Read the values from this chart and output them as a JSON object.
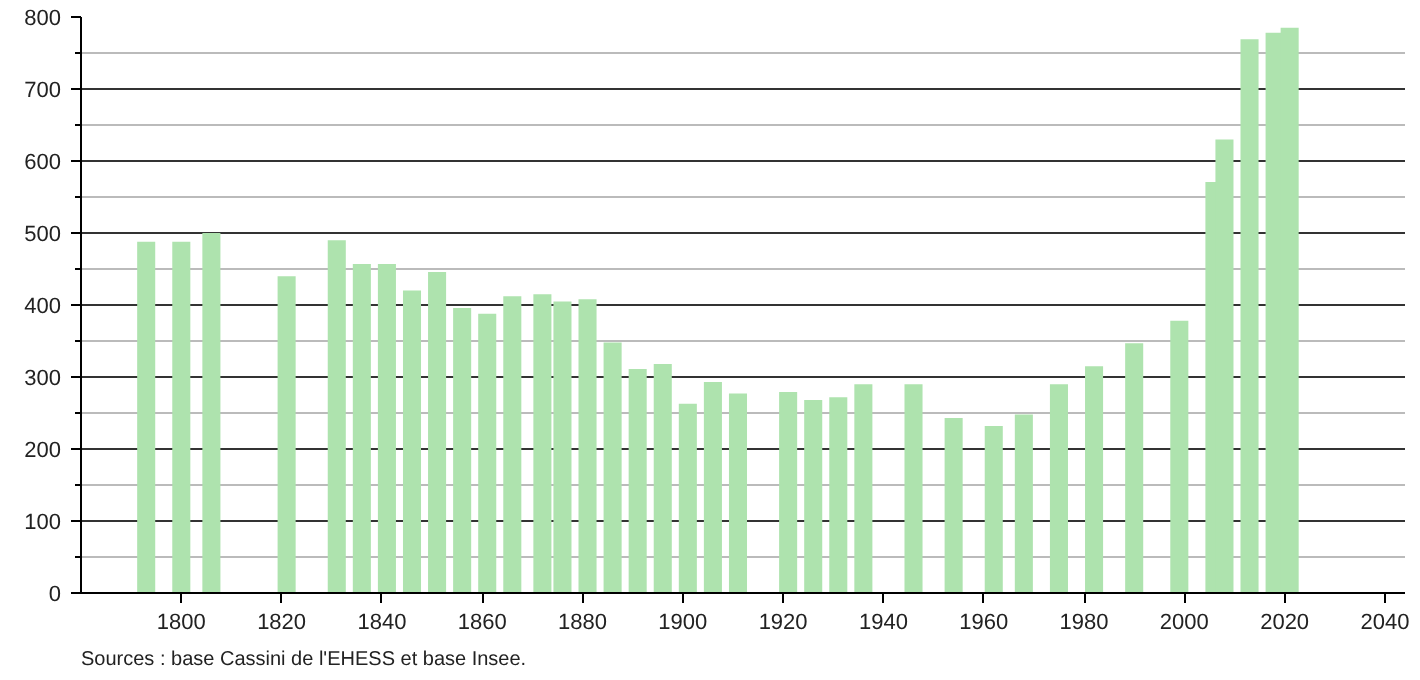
{
  "chart_data": {
    "type": "bar",
    "color": "#aee3ae",
    "x": [
      1793,
      1800,
      1806,
      1821,
      1831,
      1836,
      1841,
      1846,
      1851,
      1856,
      1861,
      1866,
      1872,
      1876,
      1881,
      1886,
      1891,
      1896,
      1901,
      1906,
      1911,
      1921,
      1926,
      1931,
      1936,
      1946,
      1954,
      1962,
      1968,
      1975,
      1982,
      1990,
      1999,
      2006,
      2008,
      2013,
      2018,
      2021
    ],
    "values": [
      488,
      488,
      500,
      440,
      490,
      457,
      457,
      420,
      446,
      396,
      388,
      412,
      415,
      405,
      408,
      348,
      311,
      318,
      263,
      293,
      277,
      279,
      268,
      272,
      290,
      290,
      243,
      232,
      248,
      290,
      315,
      347,
      378,
      571,
      630,
      769,
      778,
      785
    ],
    "xlim": [
      1780,
      2044
    ],
    "xticks": [
      1800,
      1820,
      1840,
      1860,
      1880,
      1900,
      1920,
      1940,
      1960,
      1980,
      2000,
      2020,
      2040
    ],
    "ylim": [
      0,
      800
    ],
    "yticks": [
      0,
      {
        "value": 50,
        "label": null
      },
      100,
      {
        "value": 150,
        "label": null
      },
      200,
      {
        "value": 250,
        "label": null
      },
      300,
      {
        "value": 350,
        "label": null
      },
      400,
      {
        "value": 450,
        "label": null
      },
      500,
      {
        "value": 550,
        "label": null
      },
      600,
      {
        "value": 650,
        "label": null
      },
      700,
      {
        "value": 750,
        "label": null
      },
      800
    ],
    "grid": "y",
    "annotations": [
      "Sources : base Cassini de l'EHESS et base Insee."
    ]
  }
}
